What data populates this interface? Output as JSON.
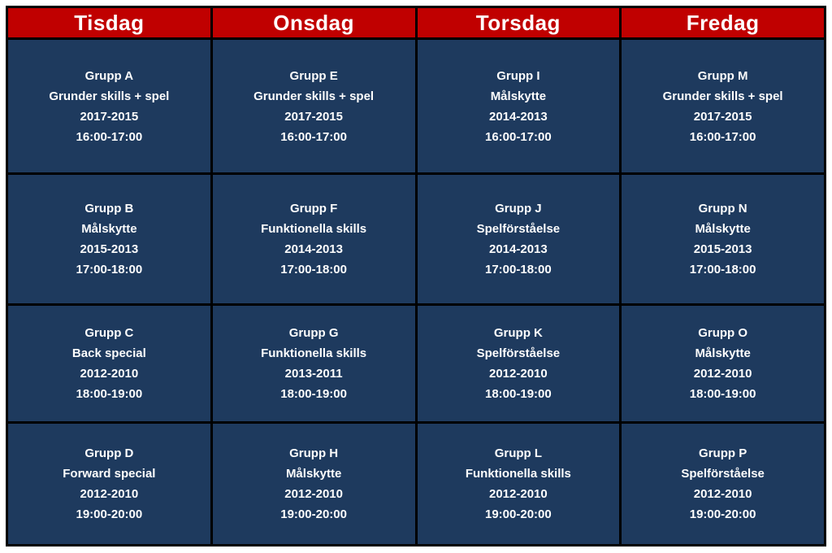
{
  "colors": {
    "header_bg": "#C00000",
    "cell_bg": "#1E3A5E",
    "border": "#000000",
    "header_text": "#FFFFFF",
    "cell_text": "#FDFDFD"
  },
  "schedule": {
    "days": [
      {
        "label": "Tisdag",
        "slots": [
          {
            "group": "Grupp A",
            "activity": "Grunder skills + spel",
            "years": "2017-2015",
            "time": "16:00-17:00"
          },
          {
            "group": "Grupp B",
            "activity": "Målskytte",
            "years": "2015-2013",
            "time": "17:00-18:00"
          },
          {
            "group": "Grupp C",
            "activity": "Back special",
            "years": "2012-2010",
            "time": "18:00-19:00"
          },
          {
            "group": "Grupp D",
            "activity": "Forward special",
            "years": "2012-2010",
            "time": "19:00-20:00"
          }
        ]
      },
      {
        "label": "Onsdag",
        "slots": [
          {
            "group": "Grupp E",
            "activity": "Grunder skills + spel",
            "years": "2017-2015",
            "time": "16:00-17:00"
          },
          {
            "group": "Grupp F",
            "activity": "Funktionella skills",
            "years": "2014-2013",
            "time": "17:00-18:00"
          },
          {
            "group": "Grupp G",
            "activity": "Funktionella skills",
            "years": "2013-2011",
            "time": "18:00-19:00"
          },
          {
            "group": "Grupp H",
            "activity": "Målskytte",
            "years": "2012-2010",
            "time": "19:00-20:00"
          }
        ]
      },
      {
        "label": "Torsdag",
        "slots": [
          {
            "group": "Grupp I",
            "activity": "Målskytte",
            "years": "2014-2013",
            "time": "16:00-17:00"
          },
          {
            "group": "Grupp J",
            "activity": "Spelförståelse",
            "years": "2014-2013",
            "time": "17:00-18:00"
          },
          {
            "group": "Grupp K",
            "activity": "Spelförståelse",
            "years": "2012-2010",
            "time": "18:00-19:00"
          },
          {
            "group": "Grupp L",
            "activity": "Funktionella skills",
            "years": "2012-2010",
            "time": "19:00-20:00"
          }
        ]
      },
      {
        "label": "Fredag",
        "slots": [
          {
            "group": "Grupp M",
            "activity": "Grunder skills + spel",
            "years": "2017-2015",
            "time": "16:00-17:00"
          },
          {
            "group": "Grupp N",
            "activity": "Målskytte",
            "years": "2015-2013",
            "time": "17:00-18:00"
          },
          {
            "group": "Grupp O",
            "activity": "Målskytte",
            "years": "2012-2010",
            "time": "18:00-19:00"
          },
          {
            "group": "Grupp P",
            "activity": "Spelförståelse",
            "years": "2012-2010",
            "time": "19:00-20:00"
          }
        ]
      }
    ]
  }
}
